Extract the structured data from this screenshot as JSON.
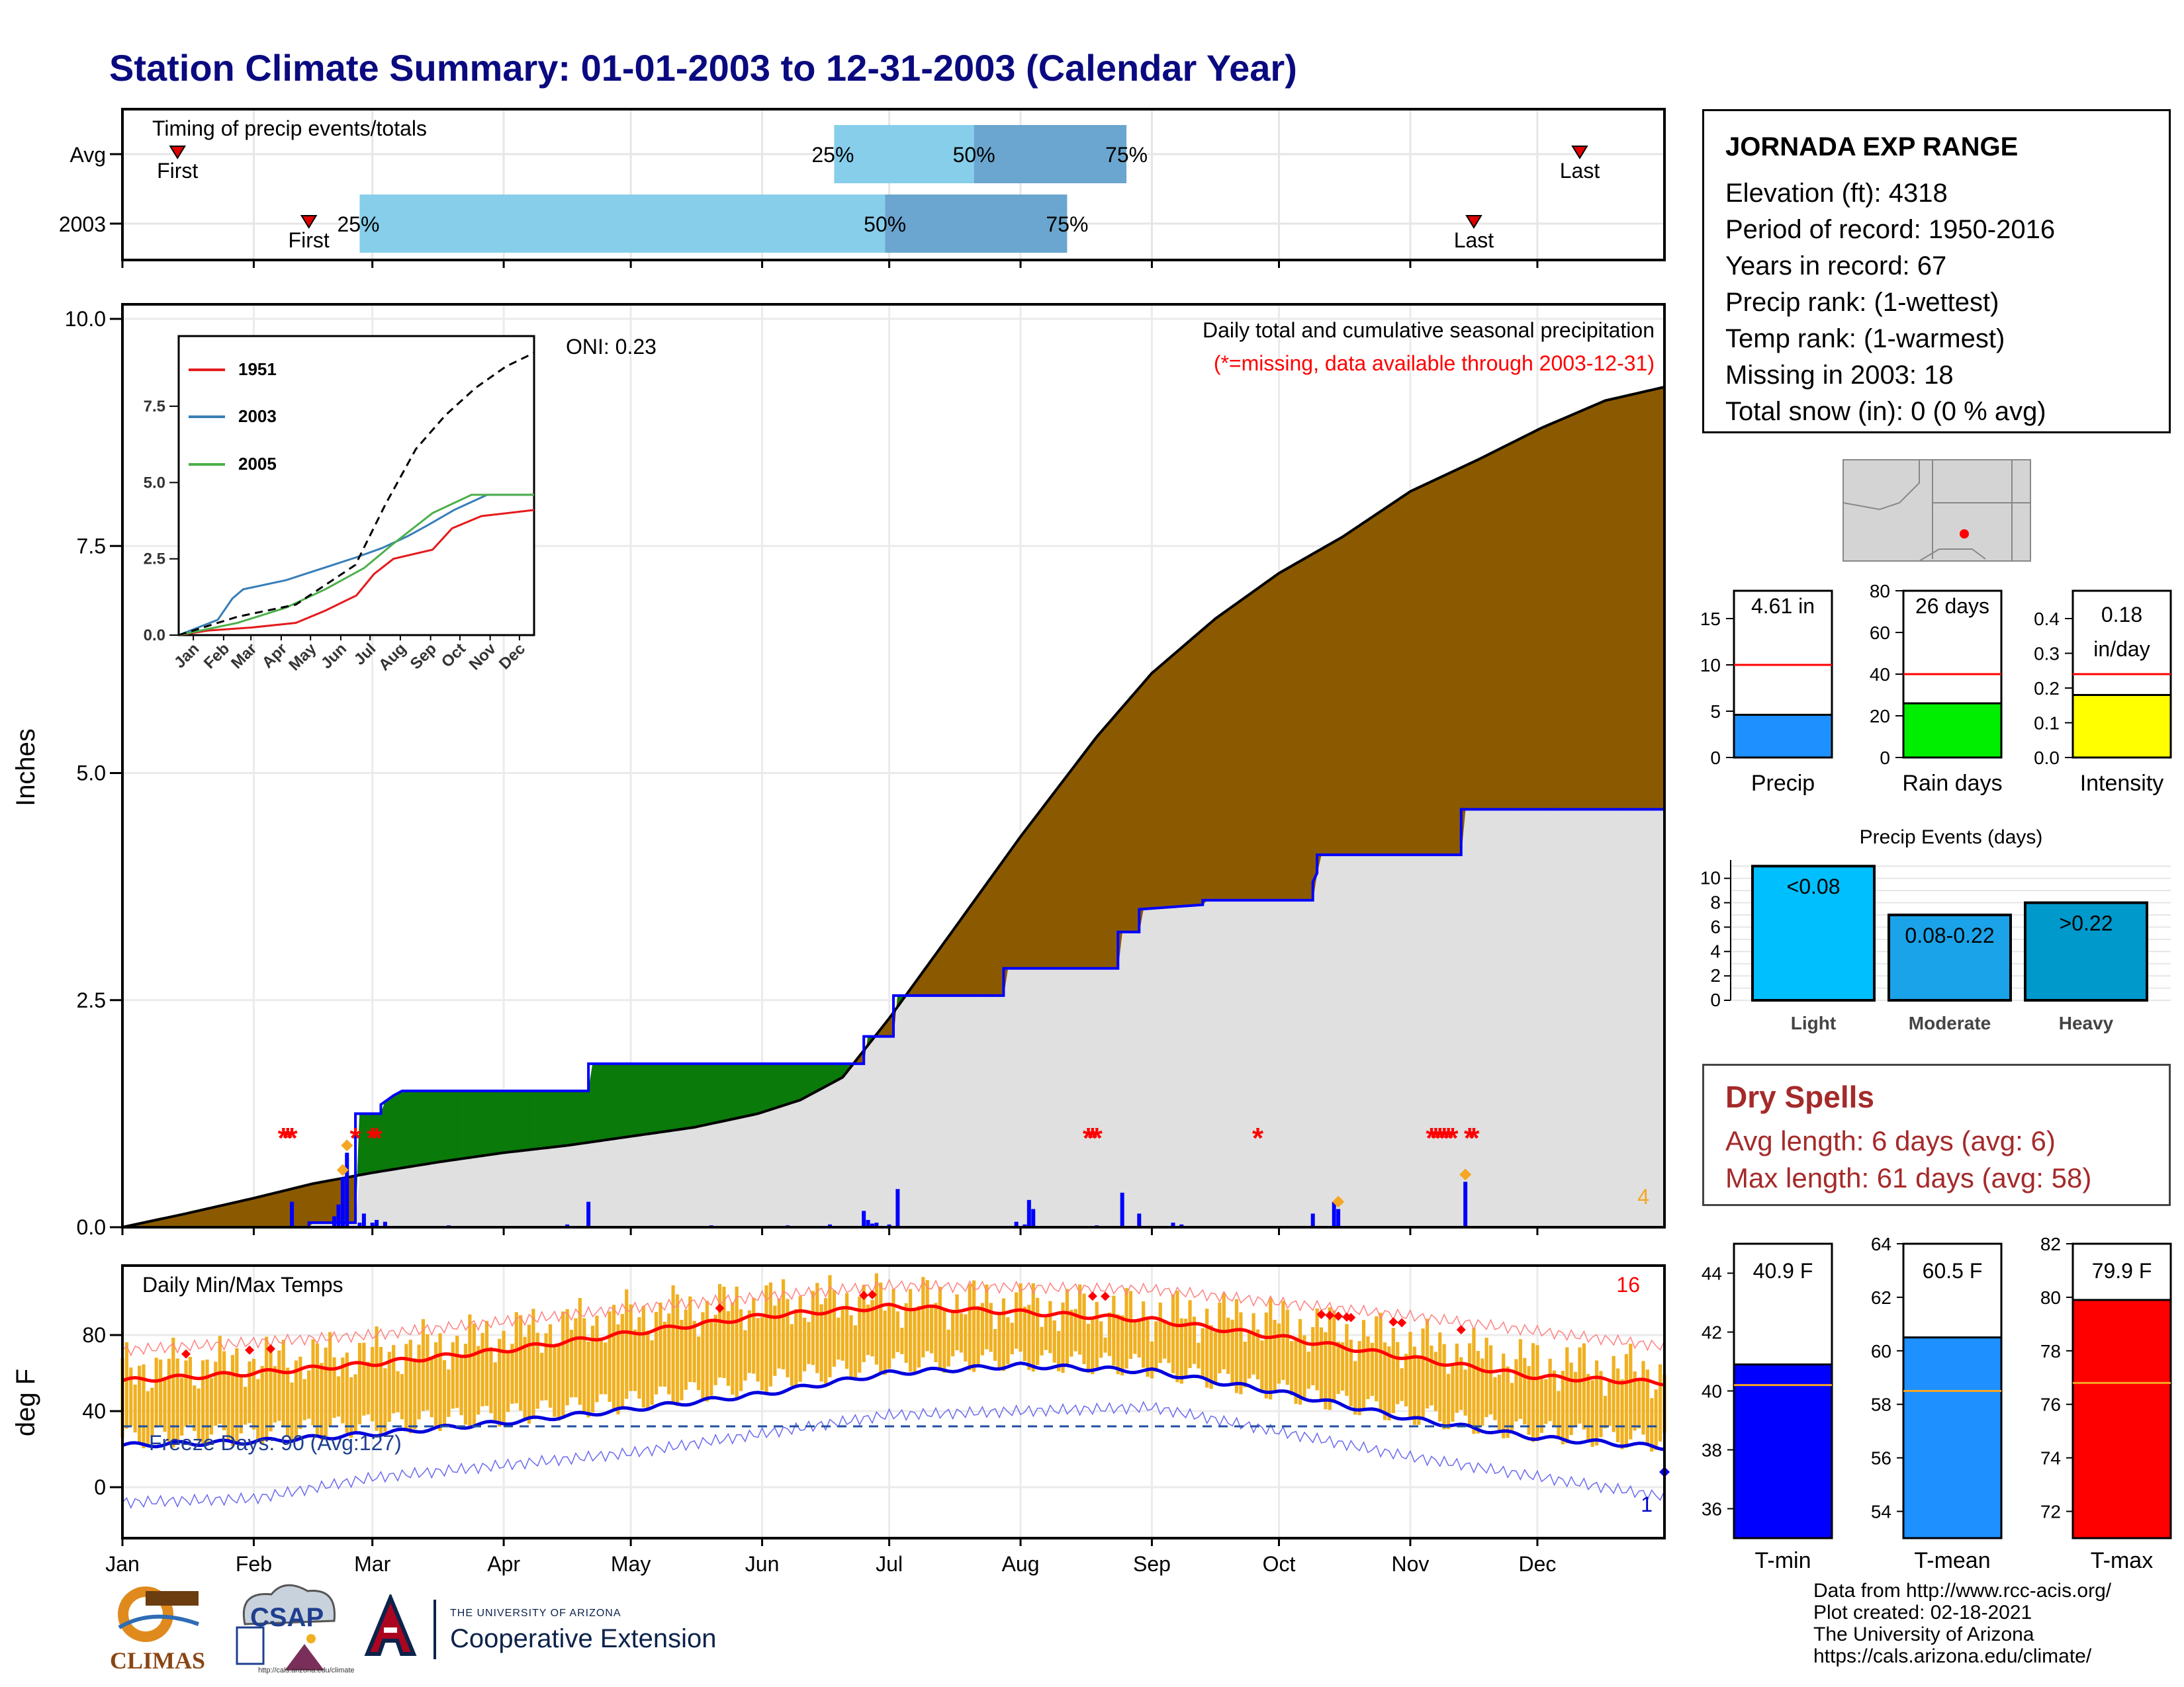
{
  "title": "Station Climate Summary: 01-01-2003 to 12-31-2003 (Calendar Year)",
  "colors": {
    "title": "#0a0a80",
    "light_blue": "#87ceeb",
    "mid_blue": "#6aa6cf",
    "brown": "#8b5a00",
    "green": "#0a7a0a",
    "grey_fill": "#e0e0e0",
    "red": "#ff0000",
    "orange_bar": "#f0b020"
  },
  "timing_panel": {
    "title": "Timing of precip events/totals",
    "rows": [
      "Avg",
      "2003"
    ],
    "labels": {
      "first": "First",
      "last": "Last",
      "p25": "25%",
      "p50": "50%",
      "p75": "75%"
    }
  },
  "station": {
    "name": "JORNADA EXP RANGE",
    "elevation": "Elevation (ft): 4318",
    "period": "Period of record: 1950-2016",
    "years": "Years in record: 67",
    "precip_rank": "Precip rank:  (1-wettest)",
    "temp_rank": "Temp rank:  (1-warmest)",
    "missing": "Missing in 2003: 18",
    "snow": "Total snow (in): 0 (0 % avg)"
  },
  "dry_spells": {
    "title": "Dry Spells",
    "avg": "Avg length: 6 days (avg: 6)",
    "max": "Max length: 61 days (avg: 58)"
  },
  "credits": [
    "Data from http://www.rcc-acis.org/",
    "Plot created: 02-18-2021",
    "The University of Arizona",
    "https://cals.arizona.edu/climate/"
  ],
  "logos": {
    "climas": "CLIMAS",
    "csap": "CSAP",
    "csap_url": "http://cals.arizona.edu/climate",
    "ua_line1": "THE UNIVERSITY OF ARIZONA",
    "ua_line2": "Cooperative Extension"
  },
  "chart_data": [
    {
      "type": "timing",
      "rows": [
        {
          "label": "Avg",
          "first": "2003-01-14",
          "p25": "2003-06-18",
          "p50": "2003-07-21",
          "p75": "2003-08-26",
          "last": "2003-12-11"
        },
        {
          "label": "2003",
          "first": "2003-02-14",
          "p25": "2003-02-26",
          "p50": "2003-06-30",
          "p75": "2003-08-12",
          "last": "2003-11-16"
        }
      ]
    },
    {
      "type": "area",
      "title": "Daily total and cumulative seasonal precipitation",
      "subtitle": "(*=missing, data available through 2003-12-31)",
      "ylabel": "Inches",
      "ylim": [
        0,
        10
      ],
      "yticks": [
        "0.0",
        "2.5",
        "5.0",
        "7.5",
        "10.0"
      ],
      "months": [
        "Jan",
        "Feb",
        "Mar",
        "Apr",
        "May",
        "Jun",
        "Jul",
        "Aug",
        "Sep",
        "Oct",
        "Nov",
        "Dec"
      ],
      "corner_count": "4",
      "avg_cumulative": [
        [
          0,
          0
        ],
        [
          15,
          0.15
        ],
        [
          31,
          0.32
        ],
        [
          45,
          0.48
        ],
        [
          59,
          0.6
        ],
        [
          75,
          0.72
        ],
        [
          90,
          0.82
        ],
        [
          105,
          0.9
        ],
        [
          120,
          1.0
        ],
        [
          135,
          1.1
        ],
        [
          150,
          1.25
        ],
        [
          160,
          1.4
        ],
        [
          170,
          1.65
        ],
        [
          181,
          2.3
        ],
        [
          195,
          3.2
        ],
        [
          212,
          4.3
        ],
        [
          230,
          5.4
        ],
        [
          243,
          6.1
        ],
        [
          258,
          6.7
        ],
        [
          273,
          7.2
        ],
        [
          288,
          7.6
        ],
        [
          304,
          8.1
        ],
        [
          320,
          8.45
        ],
        [
          335,
          8.8
        ],
        [
          350,
          9.1
        ],
        [
          364,
          9.25
        ]
      ],
      "cumulative_2003": [
        [
          0,
          0
        ],
        [
          44,
          0
        ],
        [
          44,
          0.05
        ],
        [
          55,
          0.05
        ],
        [
          55,
          1.25
        ],
        [
          61,
          1.25
        ],
        [
          61,
          1.35
        ],
        [
          64,
          1.45
        ],
        [
          66,
          1.5
        ],
        [
          110,
          1.5
        ],
        [
          110,
          1.8
        ],
        [
          175,
          1.8
        ],
        [
          175,
          2.1
        ],
        [
          182,
          2.1
        ],
        [
          182,
          2.55
        ],
        [
          208,
          2.55
        ],
        [
          208,
          2.85
        ],
        [
          235,
          2.85
        ],
        [
          235,
          3.25
        ],
        [
          240,
          3.25
        ],
        [
          240,
          3.5
        ],
        [
          255,
          3.55
        ],
        [
          255,
          3.6
        ],
        [
          281,
          3.6
        ],
        [
          281,
          3.8
        ],
        [
          282,
          3.9
        ],
        [
          282,
          4.1
        ],
        [
          316,
          4.1
        ],
        [
          316,
          4.6
        ],
        [
          364,
          4.6
        ]
      ],
      "daily": [
        [
          40,
          0.28
        ],
        [
          50,
          0.12
        ],
        [
          51,
          0.25
        ],
        [
          52,
          0.55
        ],
        [
          53,
          0.82
        ],
        [
          56,
          0.05
        ],
        [
          57,
          0.15
        ],
        [
          59,
          0.05
        ],
        [
          60,
          0.08
        ],
        [
          62,
          0.06
        ],
        [
          77,
          0.02
        ],
        [
          105,
          0.03
        ],
        [
          110,
          0.28
        ],
        [
          139,
          0.02
        ],
        [
          157,
          0.02
        ],
        [
          167,
          0.03
        ],
        [
          175,
          0.18
        ],
        [
          176,
          0.08
        ],
        [
          177,
          0.04
        ],
        [
          178,
          0.05
        ],
        [
          181,
          0.03
        ],
        [
          183,
          0.42
        ],
        [
          211,
          0.06
        ],
        [
          213,
          0.03
        ],
        [
          214,
          0.3
        ],
        [
          215,
          0.2
        ],
        [
          230,
          0.02
        ],
        [
          236,
          0.38
        ],
        [
          240,
          0.15
        ],
        [
          248,
          0.05
        ],
        [
          250,
          0.03
        ],
        [
          281,
          0.15
        ],
        [
          286,
          0.28
        ],
        [
          287,
          0.2
        ],
        [
          317,
          0.5
        ]
      ],
      "missing_days": [
        38,
        39,
        40,
        55,
        59,
        60,
        228,
        229,
        230,
        268,
        309,
        310,
        311,
        312,
        313,
        314,
        318,
        319
      ]
    },
    {
      "type": "line",
      "title": "",
      "legend": [
        "1951",
        "2003",
        "2005"
      ],
      "oni": "ONI: 0.23",
      "months": [
        "Jan",
        "Feb",
        "Mar",
        "Apr",
        "May",
        "Jun",
        "Jul",
        "Aug",
        "Sep",
        "Oct",
        "Nov",
        "Dec"
      ],
      "ylim": [
        0,
        9.8
      ],
      "yticks": [
        "0.0",
        "2.5",
        "5.0",
        "7.5"
      ],
      "series": [
        {
          "name": "1951",
          "color": "#e41a1c",
          "values": [
            [
              0,
              0
            ],
            [
              30,
              0.15
            ],
            [
              75,
              0.25
            ],
            [
              120,
              0.4
            ],
            [
              150,
              0.8
            ],
            [
              182,
              1.3
            ],
            [
              200,
              2.0
            ],
            [
              220,
              2.5
            ],
            [
              260,
              2.8
            ],
            [
              280,
              3.5
            ],
            [
              310,
              3.9
            ],
            [
              364,
              4.1
            ]
          ]
        },
        {
          "name": "2003",
          "color": "#377eb8",
          "values": [
            [
              0,
              0
            ],
            [
              40,
              0.5
            ],
            [
              55,
              1.2
            ],
            [
              66,
              1.5
            ],
            [
              110,
              1.8
            ],
            [
              182,
              2.55
            ],
            [
              208,
              2.85
            ],
            [
              235,
              3.25
            ],
            [
              255,
              3.6
            ],
            [
              282,
              4.1
            ],
            [
              316,
              4.6
            ],
            [
              364,
              4.6
            ]
          ]
        },
        {
          "name": "2005",
          "color": "#4daf4a",
          "values": [
            [
              0,
              0
            ],
            [
              60,
              0.4
            ],
            [
              110,
              0.9
            ],
            [
              150,
              1.5
            ],
            [
              190,
              2.2
            ],
            [
              220,
              3.0
            ],
            [
              260,
              4.0
            ],
            [
              300,
              4.6
            ],
            [
              364,
              4.6
            ]
          ]
        },
        {
          "name": "avg",
          "color": "#000000",
          "dashed": true,
          "values": [
            [
              0,
              0
            ],
            [
              60,
              0.6
            ],
            [
              120,
              1.0
            ],
            [
              181,
              2.3
            ],
            [
              212,
              4.3
            ],
            [
              243,
              6.1
            ],
            [
              273,
              7.2
            ],
            [
              304,
              8.1
            ],
            [
              335,
              8.8
            ],
            [
              364,
              9.25
            ]
          ]
        }
      ]
    },
    {
      "type": "bar",
      "title": "",
      "categories": [
        "Precip",
        "Rain days",
        "Intensity"
      ],
      "values": [
        4.61,
        26,
        0.18
      ],
      "labels": [
        "4.61 in",
        "26 days",
        "0.18\nin/day"
      ],
      "avg": [
        10,
        40,
        0.24
      ],
      "ylims": [
        [
          0,
          18
        ],
        [
          0,
          80
        ],
        [
          0,
          0.48
        ]
      ],
      "yticks": [
        [
          0,
          5,
          10,
          15
        ],
        [
          0,
          20,
          40,
          60,
          80
        ],
        [
          0.0,
          0.1,
          0.2,
          0.3,
          0.4
        ]
      ],
      "colors": [
        "#1e90ff",
        "#00ee00",
        "#ffff00"
      ]
    },
    {
      "type": "bar",
      "title": "Precip Events (days)",
      "categories": [
        "Light",
        "Moderate",
        "Heavy"
      ],
      "values": [
        11,
        7,
        8
      ],
      "labels": [
        "<0.08",
        "0.08-0.22",
        ">0.22"
      ],
      "ylim": [
        0,
        11.5
      ],
      "yticks": [
        0,
        2,
        4,
        6,
        8,
        10
      ],
      "colors": [
        "#00bfff",
        "#1aa3e8",
        "#0099cc"
      ]
    },
    {
      "type": "bar",
      "title": "Daily Min/Max Temps",
      "ylabel": "deg F",
      "ylim": [
        -20,
        115
      ],
      "yticks": [
        0,
        40,
        80
      ],
      "months": [
        "Jan",
        "Feb",
        "Mar",
        "Apr",
        "May",
        "Jun",
        "Jul",
        "Aug",
        "Sep",
        "Oct",
        "Nov",
        "Dec"
      ],
      "freeze_text": "Freeze Days: 90 (Avg:127)",
      "freeze_line": 32,
      "count_hot": "16",
      "count_cold": "1",
      "avg_max": [
        [
          0,
          56
        ],
        [
          31,
          60
        ],
        [
          59,
          65
        ],
        [
          90,
          72
        ],
        [
          120,
          81
        ],
        [
          151,
          90
        ],
        [
          181,
          95
        ],
        [
          212,
          92
        ],
        [
          243,
          88
        ],
        [
          273,
          79
        ],
        [
          304,
          68
        ],
        [
          334,
          58
        ],
        [
          364,
          55
        ]
      ],
      "avg_min": [
        [
          0,
          22
        ],
        [
          31,
          24
        ],
        [
          59,
          28
        ],
        [
          90,
          34
        ],
        [
          120,
          41
        ],
        [
          151,
          49
        ],
        [
          181,
          60
        ],
        [
          212,
          64
        ],
        [
          243,
          61
        ],
        [
          273,
          50
        ],
        [
          304,
          36
        ],
        [
          334,
          26
        ],
        [
          364,
          21
        ]
      ],
      "record_max": [
        [
          0,
          72
        ],
        [
          59,
          80
        ],
        [
          120,
          94
        ],
        [
          181,
          106
        ],
        [
          243,
          104
        ],
        [
          304,
          90
        ],
        [
          364,
          74
        ]
      ],
      "record_min": [
        [
          0,
          -8
        ],
        [
          31,
          -6
        ],
        [
          59,
          5
        ],
        [
          120,
          18
        ],
        [
          181,
          38
        ],
        [
          243,
          42
        ],
        [
          304,
          16
        ],
        [
          364,
          -5
        ]
      ],
      "daily_range_max": [
        [
          0,
          62
        ],
        [
          30,
          66
        ],
        [
          60,
          70
        ],
        [
          90,
          80
        ],
        [
          120,
          90
        ],
        [
          150,
          97
        ],
        [
          180,
          99
        ],
        [
          210,
          96
        ],
        [
          240,
          92
        ],
        [
          270,
          88
        ],
        [
          300,
          78
        ],
        [
          330,
          66
        ],
        [
          364,
          60
        ]
      ],
      "daily_range_min": [
        [
          0,
          26
        ],
        [
          30,
          28
        ],
        [
          60,
          33
        ],
        [
          90,
          38
        ],
        [
          120,
          45
        ],
        [
          150,
          55
        ],
        [
          180,
          65
        ],
        [
          210,
          67
        ],
        [
          240,
          64
        ],
        [
          270,
          52
        ],
        [
          300,
          40
        ],
        [
          330,
          30
        ],
        [
          364,
          24
        ]
      ],
      "record_days_hot": [
        15,
        30,
        35,
        141,
        175,
        177,
        229,
        232,
        283,
        285,
        287,
        289,
        290,
        300,
        302,
        316
      ],
      "record_days_cold": [
        364
      ]
    },
    {
      "type": "bar",
      "title": "",
      "categories": [
        "T-min",
        "T-mean",
        "T-max"
      ],
      "values": [
        40.9,
        60.5,
        79.9
      ],
      "labels": [
        "40.9 F",
        "60.5 F",
        "79.9 F"
      ],
      "avg": [
        40.2,
        58.5,
        76.8
      ],
      "ylims": [
        [
          35,
          45
        ],
        [
          53,
          64
        ],
        [
          71,
          82
        ]
      ],
      "yticks": [
        [
          36,
          38,
          40,
          42,
          44
        ],
        [
          54,
          56,
          58,
          60,
          62,
          64
        ],
        [
          72,
          74,
          76,
          78,
          80,
          82
        ]
      ],
      "colors": [
        "#0000ff",
        "#1e90ff",
        "#ff0000"
      ]
    }
  ]
}
